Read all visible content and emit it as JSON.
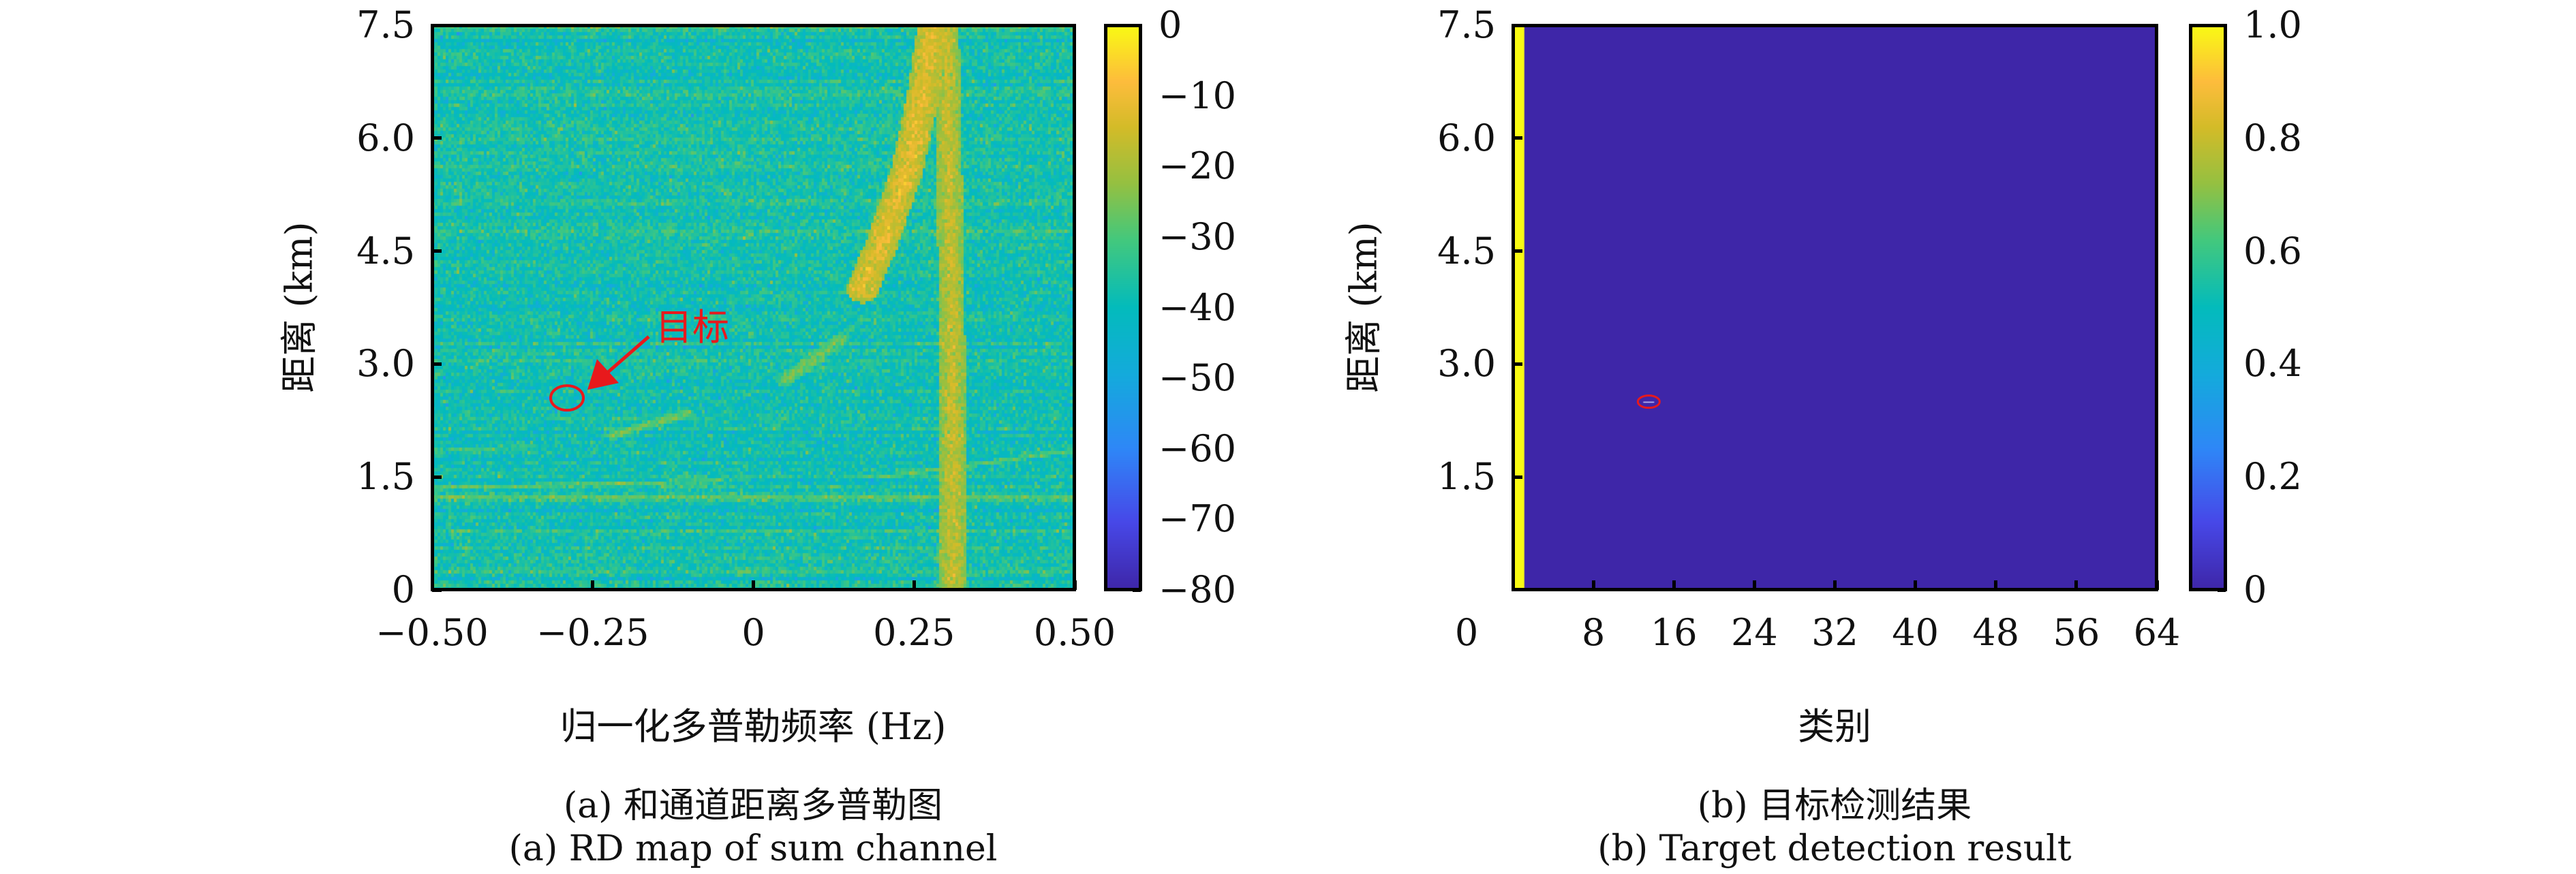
{
  "chart_data": [
    {
      "type": "heatmap",
      "title": "",
      "xlabel": "归一化多普勒频率 (Hz)",
      "ylabel": "距离 (km)",
      "xlim": [
        -0.5,
        0.5
      ],
      "ylim": [
        0,
        7.5
      ],
      "xticks": [
        -0.5,
        -0.25,
        0,
        0.25,
        0.5
      ],
      "xtick_labels": [
        "−0.50",
        "−0.25",
        "0",
        "0.25",
        "0.50"
      ],
      "yticks": [
        0,
        1.5,
        3.0,
        4.5,
        6.0,
        7.5
      ],
      "ytick_labels": [
        "0",
        "1.5",
        "3.0",
        "4.5",
        "6.0",
        "7.5"
      ],
      "colorbar": {
        "range": [
          -80,
          0
        ],
        "ticks": [
          0,
          -10,
          -20,
          -30,
          -40,
          -50,
          -60,
          -70,
          -80
        ],
        "tick_labels": [
          "0",
          "−10",
          "−20",
          "−30",
          "−40",
          "−50",
          "−60",
          "−70",
          "−80"
        ],
        "colormap": "parula"
      },
      "background_level_db": -38,
      "noise_std_db": 6,
      "features": [
        {
          "name": "strong-clutter-curve",
          "points": [
            [
              0.17,
              4.0
            ],
            [
              0.2,
              4.6
            ],
            [
              0.24,
              5.6
            ],
            [
              0.265,
              6.6
            ],
            [
              0.28,
              7.5
            ]
          ],
          "level_db": -12,
          "width": 0.025
        },
        {
          "name": "vertical-clutter-band",
          "points": [
            [
              0.31,
              0
            ],
            [
              0.31,
              3.0
            ],
            [
              0.305,
              5.5
            ],
            [
              0.3,
              7.5
            ]
          ],
          "level_db": -16,
          "width": 0.02
        },
        {
          "name": "weak-curve-upper",
          "points": [
            [
              0.05,
              2.8
            ],
            [
              0.14,
              3.35
            ]
          ],
          "level_db": -25,
          "width": 0.012
        },
        {
          "name": "weak-curve-lower",
          "points": [
            [
              -0.22,
              2.05
            ],
            [
              -0.1,
              2.35
            ]
          ],
          "level_db": -25,
          "width": 0.008
        },
        {
          "name": "horizontal-line-1",
          "points": [
            [
              -0.5,
              1.25
            ],
            [
              0.5,
              1.25
            ]
          ],
          "level_db": -24,
          "width": 0.004
        },
        {
          "name": "horizontal-line-2",
          "points": [
            [
              -0.5,
              1.35
            ],
            [
              -0.05,
              1.45
            ]
          ],
          "level_db": -26,
          "width": 0.004
        },
        {
          "name": "horizontal-line-3",
          "points": [
            [
              -0.5,
              1.85
            ],
            [
              -0.35,
              1.9
            ]
          ],
          "level_db": -30,
          "width": 0.004
        },
        {
          "name": "horizontal-line-4",
          "points": [
            [
              0.2,
              1.5
            ],
            [
              0.5,
              1.85
            ]
          ],
          "level_db": -26,
          "width": 0.004
        }
      ],
      "annotation": {
        "text": "目标",
        "target": [
          -0.29,
          2.55
        ],
        "text_pos": [
          -0.15,
          3.35
        ],
        "color": "#e8191c"
      }
    },
    {
      "type": "heatmap",
      "title": "",
      "xlabel": "类别",
      "ylabel": "距离 (km)",
      "xlim": [
        0,
        64
      ],
      "ylim": [
        0,
        7.5
      ],
      "xticks": [
        0,
        8,
        16,
        24,
        32,
        40,
        48,
        56,
        64
      ],
      "xtick_labels": [
        "0",
        "8",
        "16",
        "24",
        "32",
        "40",
        "48",
        "56",
        "64"
      ],
      "yticks": [
        1.5,
        3.0,
        4.5,
        6.0,
        7.5
      ],
      "ytick_labels": [
        "1.5",
        "3.0",
        "4.5",
        "6.0",
        "7.5"
      ],
      "colorbar": {
        "range": [
          0,
          1
        ],
        "ticks": [
          0,
          0.2,
          0.4,
          0.6,
          0.8,
          1.0
        ],
        "tick_labels": [
          "0",
          "0.2",
          "0.4",
          "0.6",
          "0.8",
          "1.0"
        ],
        "colormap": "parula"
      },
      "background_value": 0,
      "detections": [
        {
          "class_range": [
            0,
            1
          ],
          "range_km": [
            0,
            7.5
          ],
          "value": 1
        },
        {
          "class": 13.5,
          "range_km": 2.5,
          "value": 1
        }
      ],
      "annotation": {
        "target": [
          13.5,
          2.5
        ],
        "color": "#e8191c"
      }
    }
  ],
  "captions": {
    "a_cn": "(a) 和通道距离多普勒图",
    "a_en": "(a) RD map of sum channel",
    "b_cn": "(b) 目标检测结果",
    "b_en": "(b) Target detection result"
  }
}
